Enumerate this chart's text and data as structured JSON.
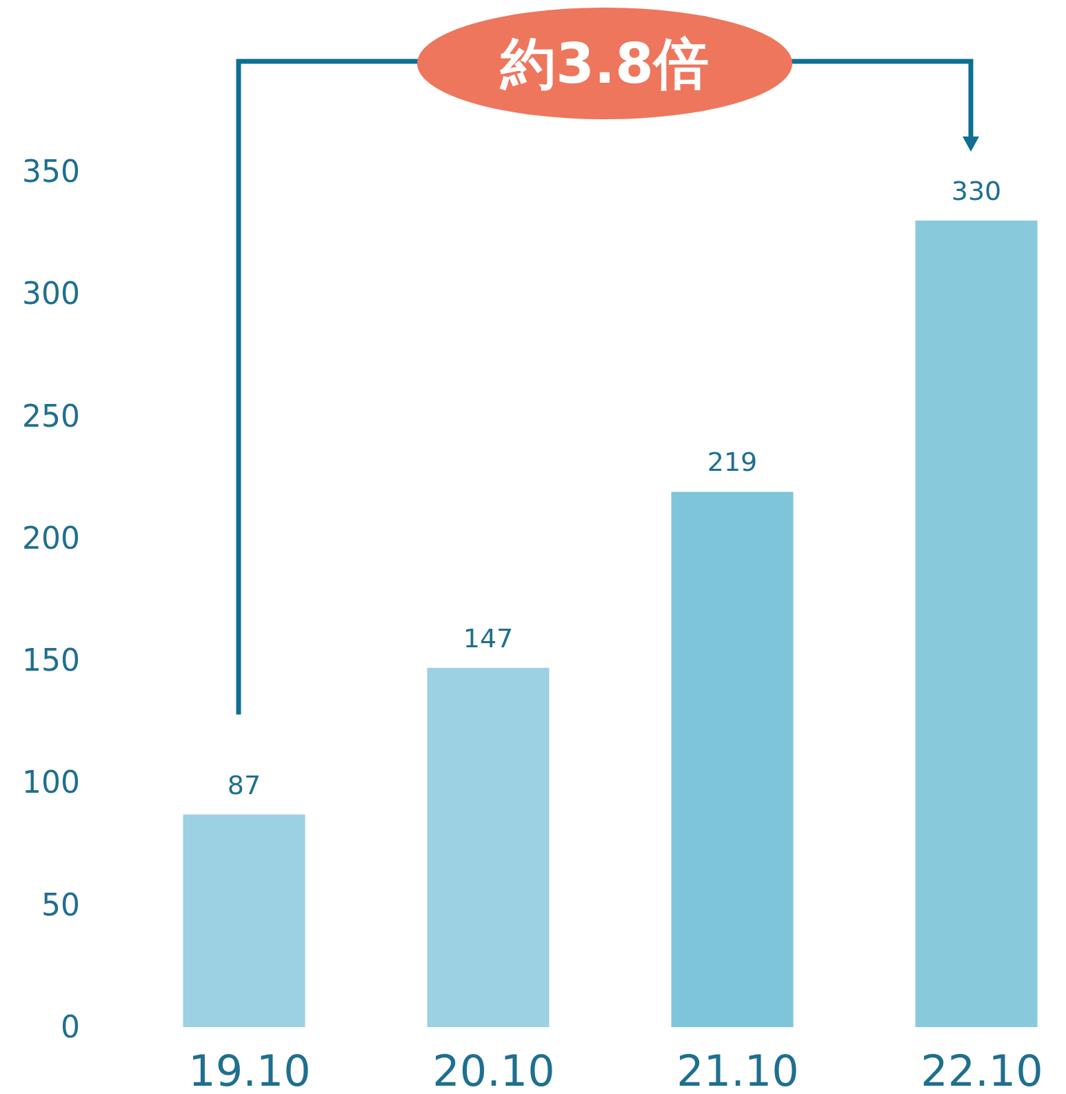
{
  "chart_data": {
    "type": "bar",
    "categories": [
      "19.10",
      "20.10",
      "21.10",
      "22.10"
    ],
    "values": [
      87,
      147,
      219,
      330
    ],
    "colors": [
      "#9bd1e2",
      "#9bd1e2",
      "#7ec5d9",
      "#88c9dc"
    ],
    "ylim": [
      0,
      350
    ],
    "yticks": [
      0,
      50,
      100,
      150,
      200,
      250,
      300,
      350
    ],
    "data_labels": true,
    "grid": false,
    "annotations": [
      "約3.8倍"
    ]
  }
}
